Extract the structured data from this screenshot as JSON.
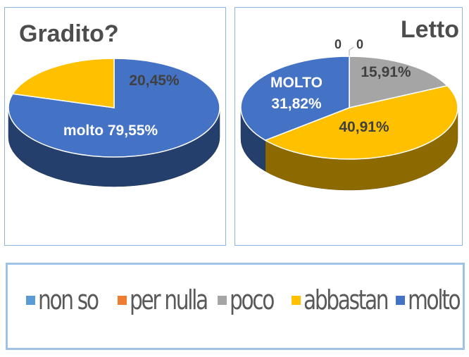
{
  "colors": {
    "non_so": "#5b9bd5",
    "per_nulla": "#ed7d31",
    "poco": "#a5a5a5",
    "abbastan": "#ffc000",
    "molto": "#4472c4"
  },
  "legend": [
    {
      "key": "non_so",
      "label": "non so"
    },
    {
      "key": "per_nulla",
      "label": "per nulla"
    },
    {
      "key": "poco",
      "label": "poco"
    },
    {
      "key": "abbastan",
      "label": "abbastan"
    },
    {
      "key": "molto",
      "label": "molto"
    }
  ],
  "chart_data": [
    {
      "type": "pie",
      "title": "Gradito?",
      "style": "3d",
      "slices": [
        {
          "key": "molto",
          "category": "molto",
          "value": 79.55,
          "label": "molto 79,55%"
        },
        {
          "key": "abbastan",
          "category": "abbastan",
          "value": 20.45,
          "label": "20,45%"
        }
      ]
    },
    {
      "type": "pie",
      "title": "Letto",
      "style": "3d",
      "slices": [
        {
          "key": "non_so",
          "category": "non so",
          "value": 0,
          "label": "0"
        },
        {
          "key": "per_nulla",
          "category": "per nulla",
          "value": 0,
          "label": "0"
        },
        {
          "key": "poco",
          "category": "poco",
          "value": 15.91,
          "label": "15,91%"
        },
        {
          "key": "abbastan",
          "category": "abbastan",
          "value": 40.91,
          "label": "40,91%"
        },
        {
          "key": "molto",
          "category": "molto",
          "value": 31.82,
          "label_lines": [
            "MOLTO",
            "31,82%"
          ]
        }
      ]
    }
  ]
}
